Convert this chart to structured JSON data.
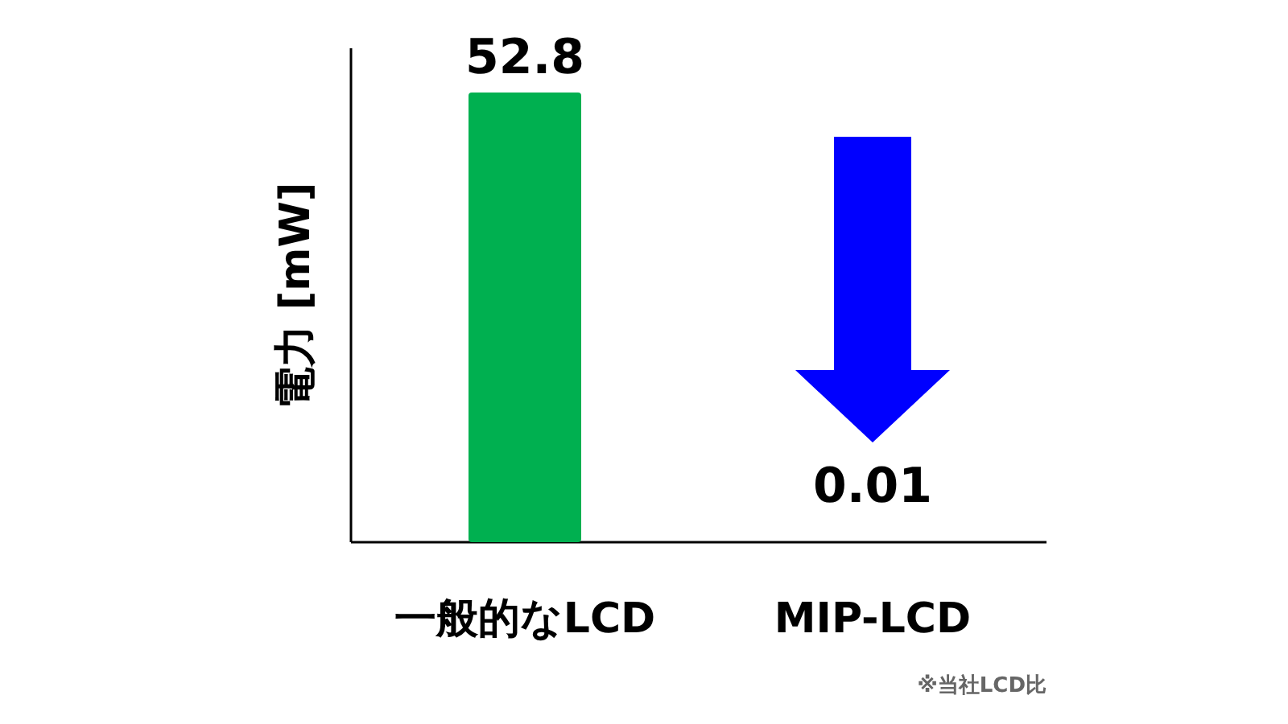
{
  "chart_data": {
    "type": "bar",
    "categories": [
      "一般的なLCD",
      "MIP-LCD"
    ],
    "values": [
      52.8,
      0.01
    ],
    "color": "#00b050",
    "ylabel": "電力 [mW]",
    "ylim": [
      0,
      58
    ],
    "data_labels": true,
    "annotations": [
      "※当社LCD比"
    ]
  }
}
